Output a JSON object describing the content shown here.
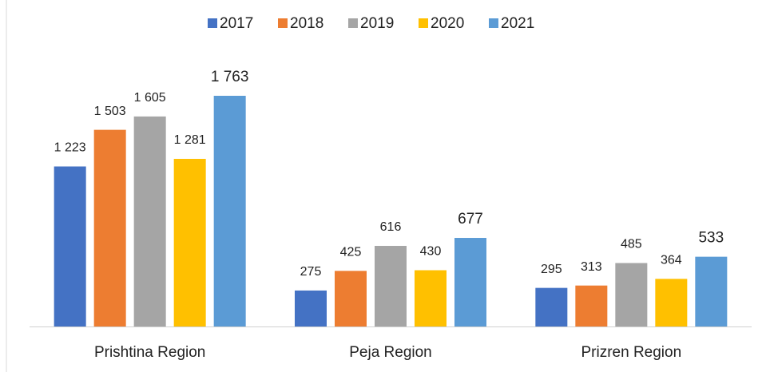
{
  "chart_data": {
    "type": "bar",
    "categories": [
      "Prishtina Region",
      "Peja Region",
      "Prizren Region"
    ],
    "series": [
      {
        "name": "2017",
        "color": "#4472c4",
        "values": [
          1223,
          275,
          295
        ],
        "value_labels": [
          "1 223",
          "275",
          "295"
        ]
      },
      {
        "name": "2018",
        "color": "#ed7d31",
        "values": [
          1503,
          425,
          313
        ],
        "value_labels": [
          "1 503",
          "425",
          "313"
        ]
      },
      {
        "name": "2019",
        "color": "#a5a5a5",
        "values": [
          1605,
          616,
          485
        ],
        "value_labels": [
          "1 605",
          "616",
          "485"
        ]
      },
      {
        "name": "2020",
        "color": "#ffc000",
        "values": [
          1281,
          430,
          364
        ],
        "value_labels": [
          "1 281",
          "430",
          "364"
        ]
      },
      {
        "name": "2021",
        "color": "#5b9bd5",
        "values": [
          1763,
          677,
          533
        ],
        "value_labels": [
          "1 763",
          "677",
          "533"
        ]
      }
    ],
    "legend": "top"
  }
}
